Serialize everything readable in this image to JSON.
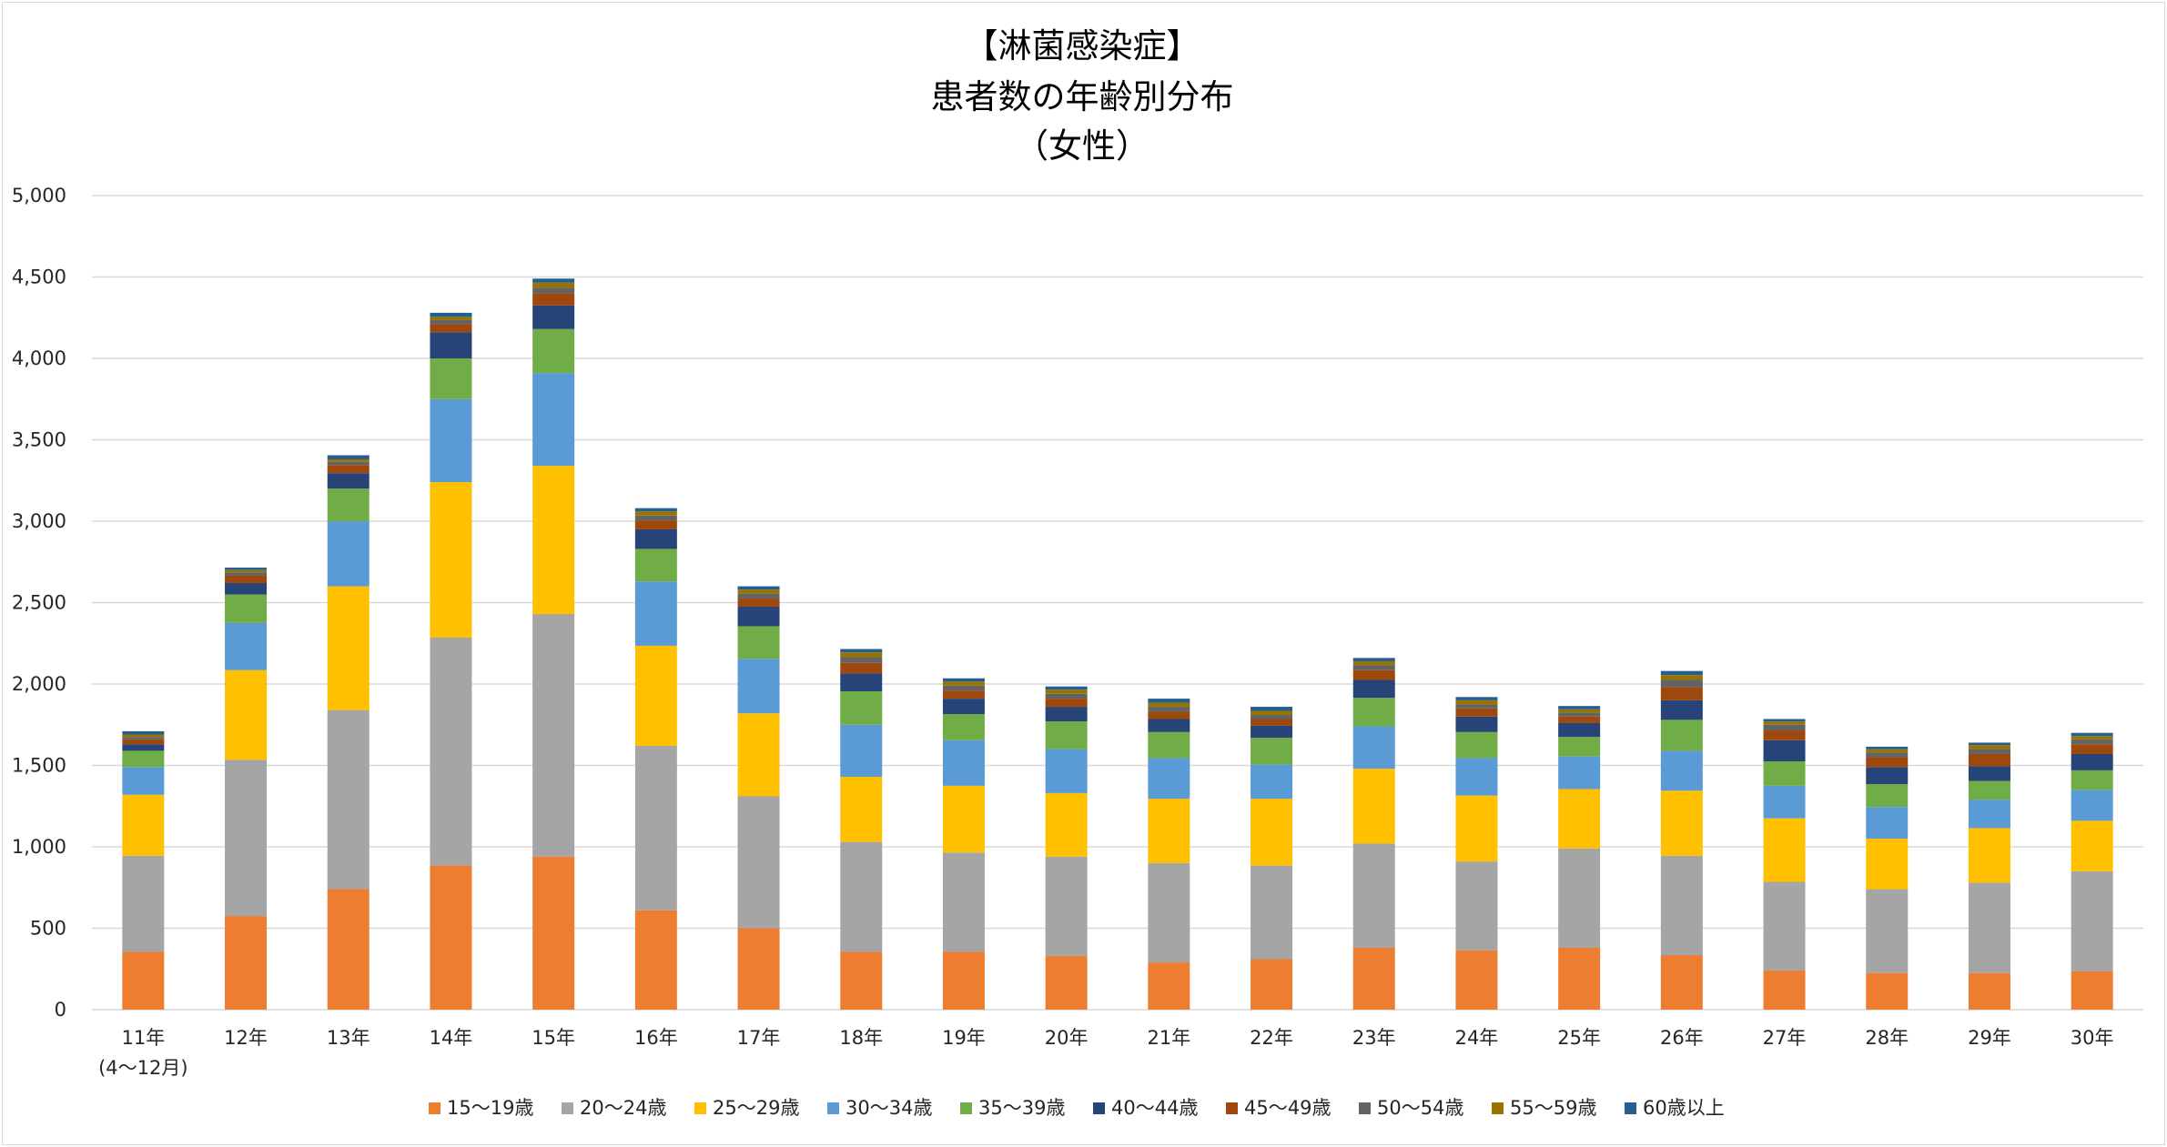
{
  "chart_data": {
    "type": "bar",
    "stacked": true,
    "title_lines": [
      "【淋菌感染症】",
      "患者数の年齢別分布",
      "（女性）"
    ],
    "categories": [
      "11年",
      "12年",
      "13年",
      "14年",
      "15年",
      "16年",
      "17年",
      "18年",
      "19年",
      "20年",
      "21年",
      "22年",
      "23年",
      "24年",
      "25年",
      "26年",
      "27年",
      "28年",
      "29年",
      "30年"
    ],
    "category_sublabels": [
      "(4～12月)",
      "",
      "",
      "",
      "",
      "",
      "",
      "",
      "",
      "",
      "",
      "",
      "",
      "",
      "",
      "",
      "",
      "",
      "",
      ""
    ],
    "ylim": [
      0,
      5000
    ],
    "yticks": [
      0,
      500,
      1000,
      1500,
      2000,
      2500,
      3000,
      3500,
      4000,
      4500,
      5000
    ],
    "ytick_labels": [
      "0",
      "500",
      "1,000",
      "1,500",
      "2,000",
      "2,500",
      "3,000",
      "3,500",
      "4,000",
      "4,500",
      "5,000"
    ],
    "grid": true,
    "legend_position": "bottom",
    "series": [
      {
        "name": "15～19歳",
        "color": "#ed7d31",
        "values": [
          355,
          575,
          740,
          885,
          940,
          610,
          500,
          355,
          355,
          330,
          290,
          310,
          380,
          365,
          380,
          335,
          240,
          225,
          225,
          235
        ]
      },
      {
        "name": "20～24歳",
        "color": "#a5a5a5",
        "values": [
          590,
          960,
          1100,
          1400,
          1490,
          1010,
          810,
          675,
          610,
          610,
          610,
          575,
          640,
          545,
          610,
          610,
          545,
          515,
          555,
          615
        ]
      },
      {
        "name": "25～29歳",
        "color": "#ffc000",
        "values": [
          375,
          550,
          760,
          955,
          910,
          615,
          510,
          400,
          410,
          390,
          395,
          410,
          460,
          405,
          365,
          400,
          390,
          310,
          335,
          310
        ]
      },
      {
        "name": "30～34歳",
        "color": "#5b9bd5",
        "values": [
          170,
          290,
          400,
          510,
          570,
          395,
          335,
          320,
          280,
          270,
          250,
          210,
          260,
          230,
          200,
          245,
          200,
          195,
          175,
          190
        ]
      },
      {
        "name": "35～39歳",
        "color": "#70ad47",
        "values": [
          100,
          175,
          200,
          250,
          270,
          200,
          200,
          205,
          160,
          170,
          160,
          165,
          175,
          160,
          120,
          190,
          150,
          140,
          115,
          120
        ]
      },
      {
        "name": "40～44歳",
        "color": "#264478",
        "values": [
          40,
          70,
          95,
          160,
          145,
          120,
          120,
          110,
          95,
          90,
          80,
          75,
          110,
          95,
          85,
          120,
          130,
          105,
          90,
          100
        ]
      },
      {
        "name": "45～49歳",
        "color": "#9e480e",
        "values": [
          30,
          45,
          50,
          50,
          75,
          55,
          50,
          65,
          50,
          50,
          45,
          40,
          60,
          50,
          40,
          80,
          60,
          60,
          75,
          60
        ]
      },
      {
        "name": "50～54歳",
        "color": "#636363",
        "values": [
          15,
          20,
          20,
          25,
          35,
          30,
          30,
          35,
          30,
          30,
          30,
          25,
          30,
          25,
          25,
          45,
          35,
          30,
          30,
          30
        ]
      },
      {
        "name": "55～59歳",
        "color": "#997300",
        "values": [
          15,
          15,
          15,
          20,
          30,
          25,
          25,
          30,
          25,
          25,
          25,
          25,
          25,
          25,
          20,
          30,
          20,
          20,
          25,
          20
        ]
      },
      {
        "name": "60歳以上",
        "color": "#255e91",
        "values": [
          20,
          15,
          25,
          25,
          25,
          20,
          20,
          20,
          20,
          20,
          25,
          25,
          20,
          20,
          20,
          25,
          15,
          15,
          15,
          20
        ]
      }
    ]
  }
}
